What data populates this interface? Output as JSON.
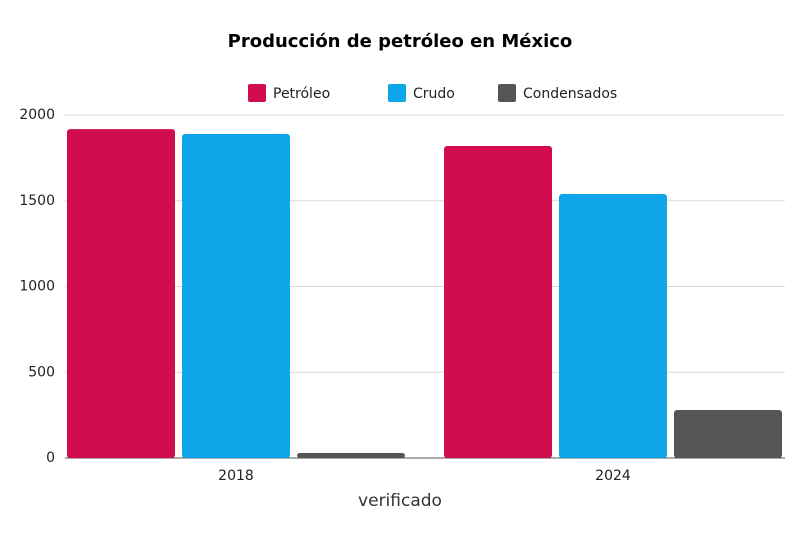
{
  "chart_data": {
    "type": "bar",
    "title": "Producción de petróleo en México",
    "categories": [
      "2018",
      "2024"
    ],
    "series": [
      {
        "name": "Petróleo",
        "color": "#d10d4f",
        "values": [
          1918,
          1819
        ]
      },
      {
        "name": "Crudo",
        "color": "#0ea5e9",
        "values": [
          1889,
          1539
        ]
      },
      {
        "name": "Condensados",
        "color": "#555555",
        "values": [
          29,
          280
        ]
      }
    ],
    "ylim": [
      0,
      2000
    ],
    "yticks": [
      0,
      500,
      1000,
      1500,
      2000
    ],
    "grid": true,
    "legend": "top",
    "logo": "verificado"
  }
}
